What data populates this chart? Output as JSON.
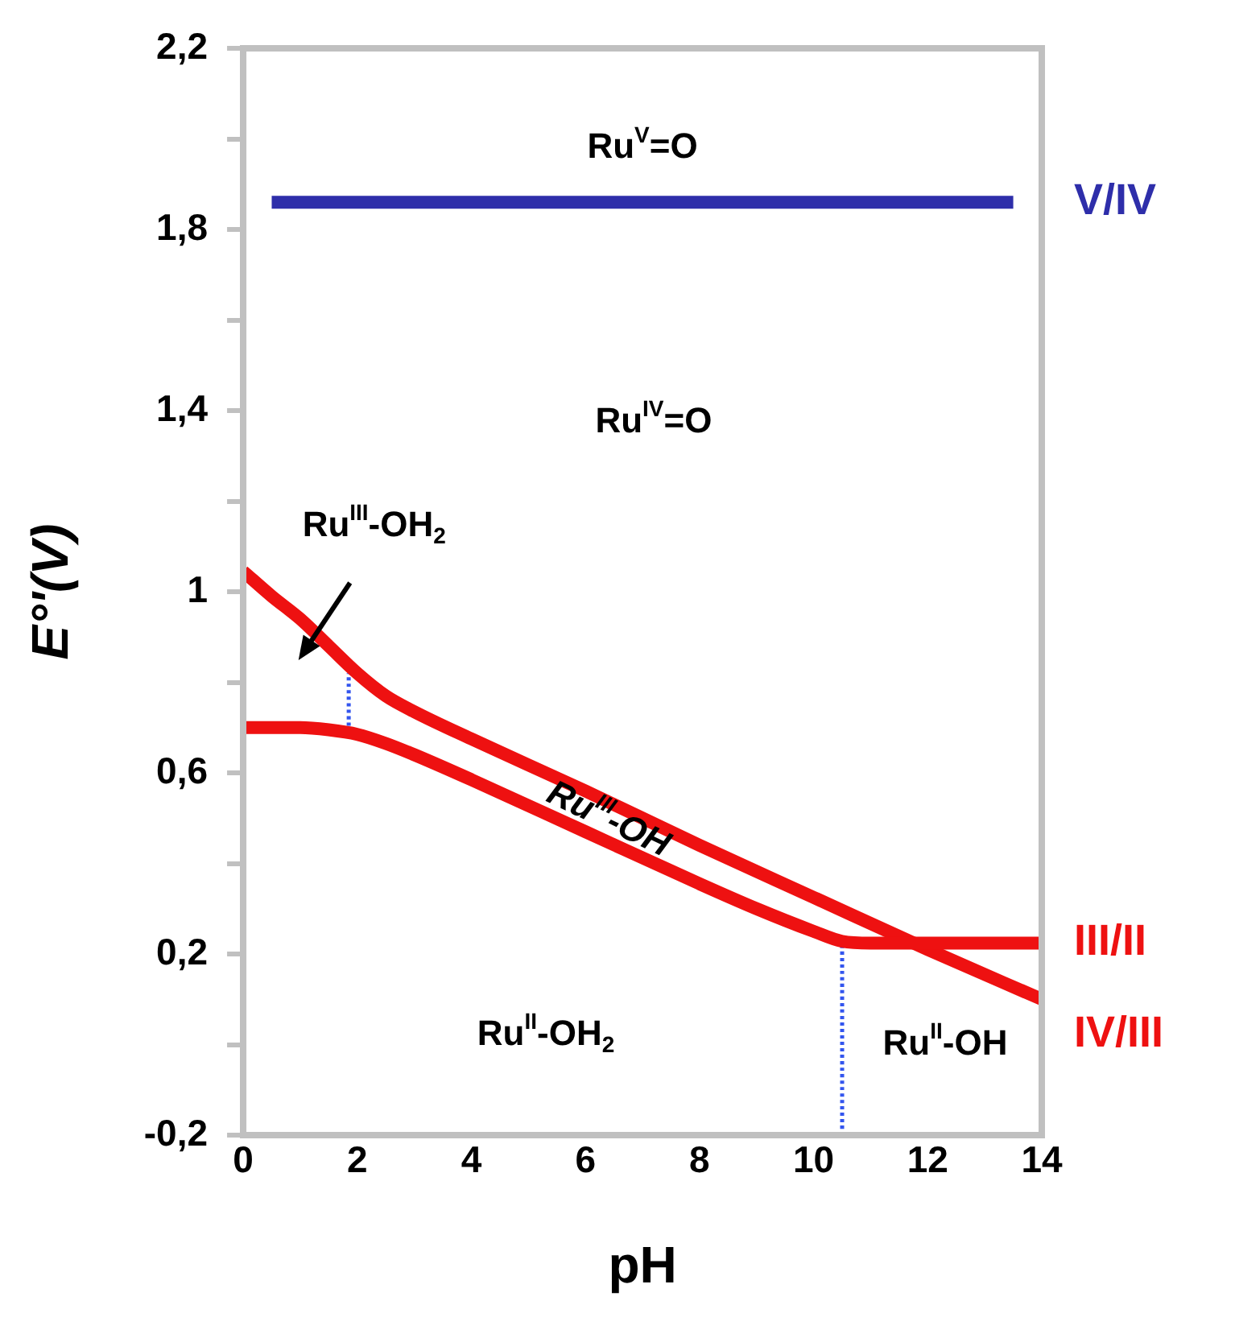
{
  "chart_data": {
    "type": "line",
    "xlabel": "pH",
    "ylabel": "E°'(V)",
    "xlim": [
      0,
      14
    ],
    "xticks": [
      0,
      2,
      4,
      6,
      8,
      10,
      12,
      14
    ],
    "ylim": [
      -0.2,
      2.2
    ],
    "yticks": [
      {
        "value": -0.2,
        "label": "-0,2"
      },
      {
        "value": 0,
        "label": null
      },
      {
        "value": 0.2,
        "label": "0,2"
      },
      {
        "value": 0.4,
        "label": null
      },
      {
        "value": 0.6,
        "label": "0,6"
      },
      {
        "value": 0.8,
        "label": null
      },
      1,
      {
        "value": 1.2,
        "label": null
      },
      {
        "value": 1.4,
        "label": "1,4"
      },
      {
        "value": 1.6,
        "label": null
      },
      {
        "value": 1.8,
        "label": "1,8"
      },
      {
        "value": 2,
        "label": null
      },
      {
        "value": 2.2,
        "label": "2,2"
      }
    ],
    "grid": false,
    "legend": false,
    "marker": "none",
    "series": [
      {
        "name": "V/IV",
        "color": "#2e2eaa",
        "x": [
          0.5,
          13.5
        ],
        "values": [
          1.86,
          1.86
        ]
      },
      {
        "name": "III/II",
        "color": "#ee1111",
        "x": [
          0,
          1,
          1.5,
          2,
          2.5,
          3,
          4,
          6,
          8,
          9,
          10,
          10.5,
          11,
          14
        ],
        "values": [
          0.7,
          0.7,
          0.695,
          0.685,
          0.665,
          0.64,
          0.585,
          0.47,
          0.355,
          0.3,
          0.25,
          0.228,
          0.224,
          0.224
        ]
      },
      {
        "name": "IV/III",
        "color": "#ee1111",
        "x": [
          0,
          0.5,
          1,
          1.5,
          2,
          2.5,
          3,
          4,
          6,
          8,
          10,
          12,
          14
        ],
        "values": [
          1.045,
          0.99,
          0.94,
          0.88,
          0.82,
          0.77,
          0.735,
          0.675,
          0.56,
          0.44,
          0.325,
          0.21,
          0.1
        ]
      },
      {
        "color": "#3355ee",
        "line_style": "dotted",
        "x": [
          1.85,
          1.85
        ],
        "values": [
          0.69,
          0.82
        ]
      },
      {
        "color": "#3355ee",
        "line_style": "dotted",
        "x": [
          10.5,
          10.5
        ],
        "values": [
          -0.2,
          0.228
        ]
      }
    ],
    "annotations": [
      "Ru$^{V}$=O",
      "Ru$^{IV}$=O",
      "Ru$^{III}$-OH$_{2}$",
      "Ru$^{III}$-OH",
      "Ru$^{II}$-OH$_{2}$",
      "Ru$^{II}$-OH"
    ]
  }
}
